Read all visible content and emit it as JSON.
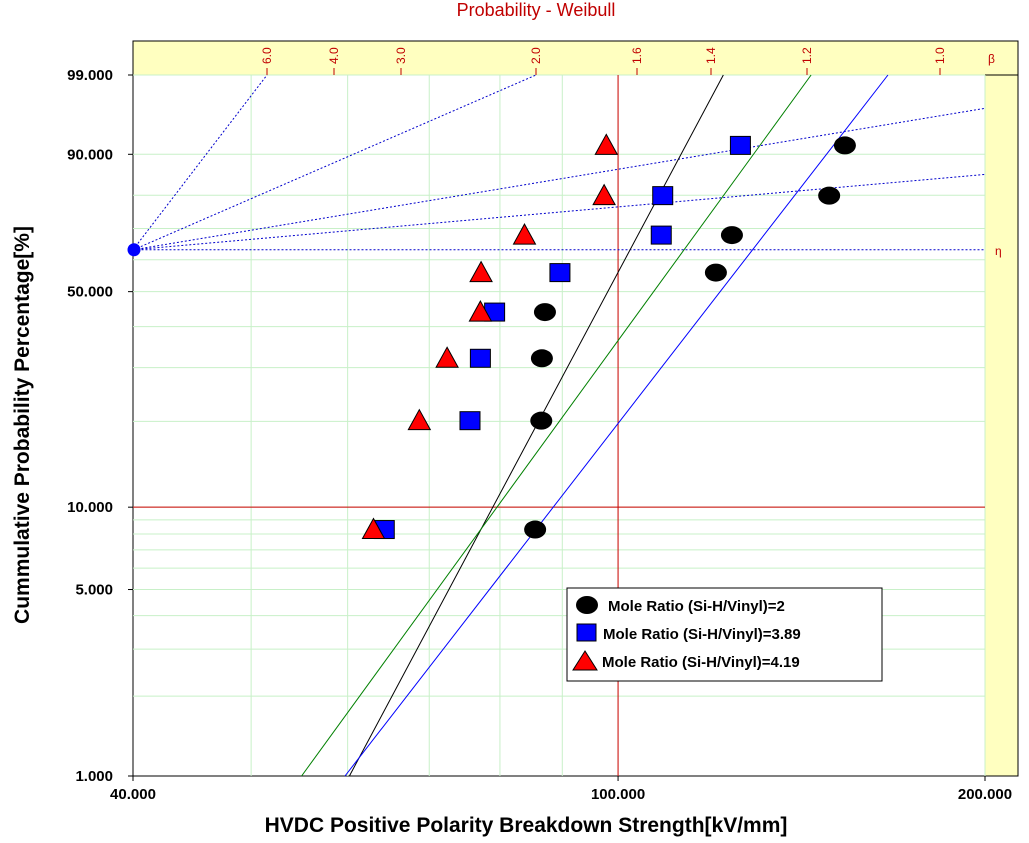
{
  "chart_data": {
    "type": "scatter",
    "title": "Probability - Weibull",
    "xlabel": "HVDC Positive Polarity Breakdown Strength[kV/mm]",
    "ylabel": "Cummulative Probability Percentage[%]",
    "x_scale": "log",
    "y_scale": "weibull",
    "xlim": [
      40,
      200
    ],
    "ylim": [
      1,
      99
    ],
    "x_ticks": [
      "40.000",
      "100.000",
      "200.000"
    ],
    "y_ticks": [
      "1.000",
      "5.000",
      "10.000",
      "50.000",
      "90.000",
      "99.000"
    ],
    "beta_axis": {
      "symbol": "β",
      "eta_symbol": "η",
      "labels": [
        "6.0",
        "4.0",
        "3.0",
        "2.0",
        "1.6",
        "1.4",
        "1.2",
        "1.0"
      ]
    },
    "series": [
      {
        "name": "Mole Ratio (Si-H/Vinyl)=2",
        "marker": "circle",
        "color": "#000000",
        "x": [
          85.5,
          86.5,
          86.6,
          87.1,
          120.3,
          124.0,
          149.0,
          153.5
        ],
        "y": [
          8.3,
          20.1,
          32.1,
          44.0,
          55.9,
          67.9,
          79.9,
          91.7
        ],
        "fit": [
          [
            60.2,
            1.0
          ],
          [
            122.0,
            99.0
          ]
        ]
      },
      {
        "name": "Mole Ratio (Si-H/Vinyl)=3.89",
        "marker": "square",
        "color": "#0000ff",
        "x": [
          64.3,
          75.6,
          77.1,
          79.2,
          89.6,
          108.5,
          108.8,
          126.0
        ],
        "y": [
          8.3,
          20.1,
          32.1,
          44.0,
          55.9,
          67.9,
          79.9,
          91.7
        ],
        "fit": [
          [
            59.7,
            1.0
          ],
          [
            166.5,
            99.0
          ]
        ]
      },
      {
        "name": "Mole Ratio (Si-H/Vinyl)=4.19",
        "marker": "triangle",
        "color": "#ff0000",
        "x": [
          63.0,
          68.7,
          72.4,
          77.1,
          77.2,
          83.8,
          97.4,
          97.8
        ],
        "y": [
          8.3,
          20.1,
          32.1,
          44.0,
          55.9,
          67.9,
          79.9,
          91.7
        ],
        "fit": [
          [
            55.0,
            1.0
          ],
          [
            144.0,
            99.0
          ]
        ]
      }
    ],
    "legend_position": "bottom-right",
    "grid": true
  }
}
